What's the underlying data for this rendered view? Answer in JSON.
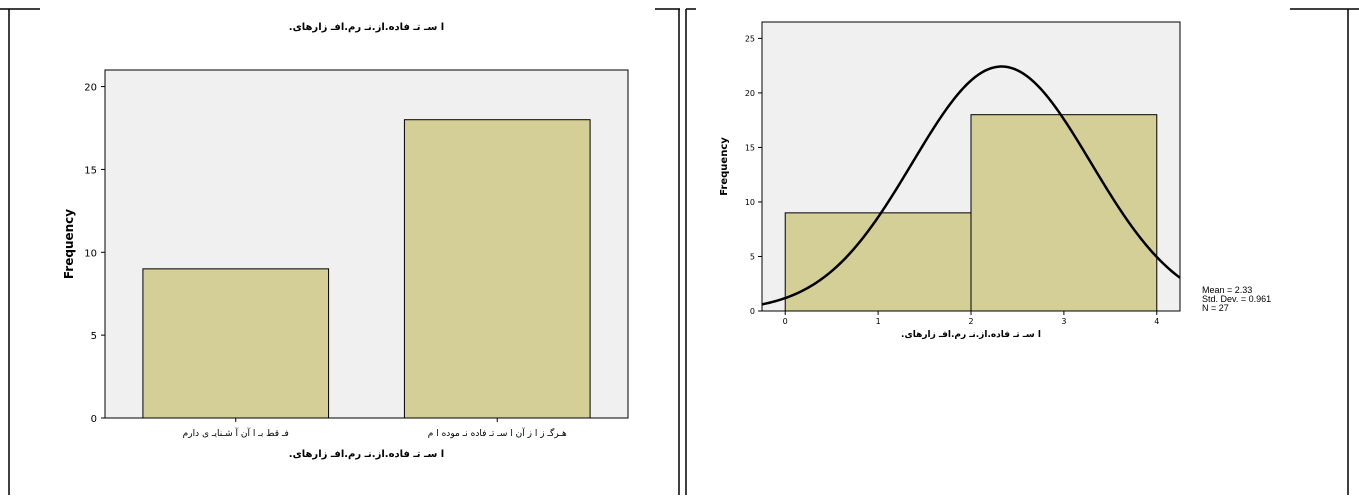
{
  "chart_data": [
    {
      "type": "bar",
      "title": "ا سـ تـ فاده.از.نـ رم.افـ زارهای.",
      "xlabel": "ا سـ تـ فاده.از.نـ رم.افـ زارهای.",
      "ylabel": "Frequency",
      "categories": [
        "فـ قط بـ ا آن آ شـنایـ ی دارم",
        "هـرگـ ز ا ز آن ا سـ تـ فاده نـ موده ا م"
      ],
      "values": [
        9,
        18
      ],
      "ylim": [
        0,
        21
      ],
      "yticks": [
        0,
        5,
        10,
        15,
        20
      ],
      "grid": false,
      "colors": {
        "bar": "#d4cf96",
        "plot_bg": "#f0f0f0"
      }
    },
    {
      "type": "bar",
      "subtype": "histogram",
      "xlabel": "ا سـ تـ فاده.از.نـ رم.افـ زارهای.",
      "ylabel": "Frequency",
      "bins": [
        {
          "x0": 0,
          "x1": 2,
          "value": 9
        },
        {
          "x0": 2,
          "x1": 4,
          "value": 18
        }
      ],
      "xlim": [
        -0.25,
        4.25
      ],
      "ylim": [
        0,
        26.5
      ],
      "xticks": [
        0,
        1,
        2,
        3,
        4
      ],
      "yticks": [
        0,
        5,
        10,
        15,
        20,
        25
      ],
      "normal_curve": {
        "mean": 2.33,
        "sd": 0.961,
        "n": 27,
        "bin_width": 2
      },
      "stats": {
        "mean": "Mean = 2.33",
        "sd": "Std. Dev. = 0.961",
        "n": "N = 27"
      },
      "grid": false,
      "colors": {
        "bar": "#d4cf96",
        "plot_bg": "#f0f0f0",
        "curve": "#000000"
      }
    }
  ]
}
